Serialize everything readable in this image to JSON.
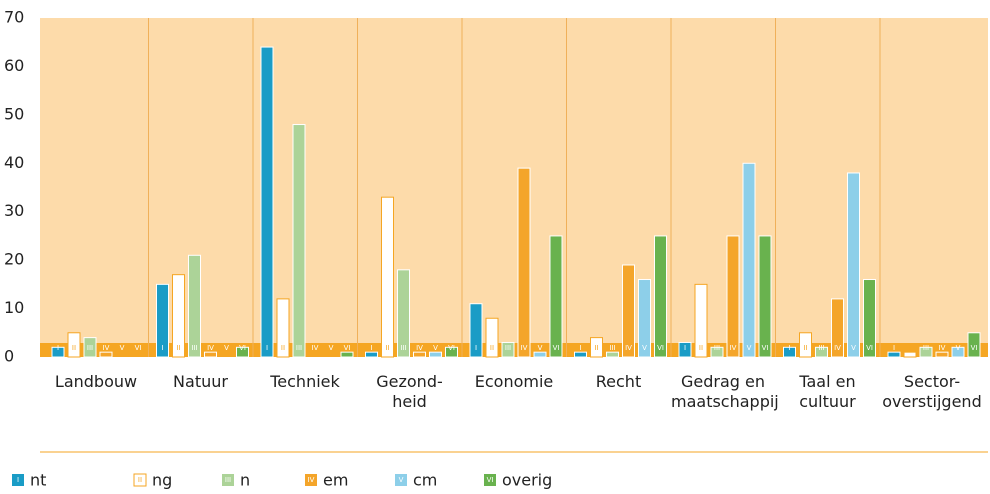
{
  "chart_data": {
    "type": "bar",
    "categories": [
      "Landbouw",
      "Natuur",
      "Techniek",
      "Gezond-\nheid",
      "Economie",
      "Recht",
      "Gedrag en\nmaatschappij",
      "Taal en\ncultuur",
      "Sector-\noverstijgend"
    ],
    "series": [
      {
        "name": "nt",
        "marker": "I",
        "color": "#1a9cc6",
        "values": [
          2,
          15,
          64,
          1,
          11,
          1,
          3,
          2,
          1
        ]
      },
      {
        "name": "ng",
        "marker": "II",
        "color": "#ffffff",
        "values": [
          5,
          17,
          12,
          33,
          8,
          4,
          15,
          5,
          1
        ]
      },
      {
        "name": "n",
        "marker": "III",
        "color": "#acd398",
        "values": [
          4,
          21,
          48,
          18,
          3,
          1,
          2,
          2,
          2
        ]
      },
      {
        "name": "em",
        "marker": "IV",
        "color": "#f4a52a",
        "values": [
          1,
          1,
          0,
          1,
          39,
          19,
          25,
          12,
          1
        ]
      },
      {
        "name": "cm",
        "marker": "V",
        "color": "#8dcfe9",
        "values": [
          0,
          0,
          0,
          1,
          1,
          16,
          40,
          38,
          2
        ]
      },
      {
        "name": "overig",
        "marker": "VI",
        "color": "#69b24e",
        "values": [
          0,
          2,
          1,
          2,
          25,
          25,
          25,
          16,
          5
        ]
      }
    ],
    "ylim": [
      0,
      70
    ],
    "yticks": [
      0,
      10,
      20,
      30,
      40,
      50,
      60,
      70
    ]
  }
}
